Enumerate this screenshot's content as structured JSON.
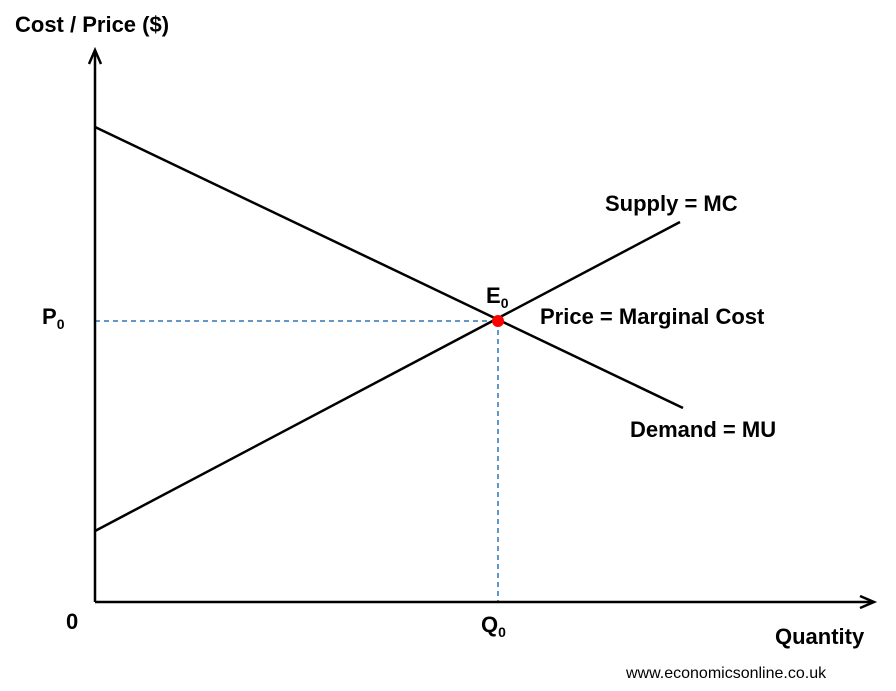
{
  "axes": {
    "y_title": "Cost / Price ($)",
    "x_title": "Quantity",
    "origin_label": "0"
  },
  "labels": {
    "price": {
      "main": "P",
      "sub": "0"
    },
    "quantity": {
      "main": "Q",
      "sub": "0"
    },
    "equilibrium": {
      "main": "E",
      "sub": "0"
    },
    "supply": "Supply = MC",
    "demand": "Demand = MU",
    "condition": "Price = Marginal Cost"
  },
  "watermark": "www.economicsonline.co.uk",
  "colors": {
    "curve": "#000000",
    "guide": "#2e75b6",
    "equilibrium_point": "#ff0000"
  }
}
